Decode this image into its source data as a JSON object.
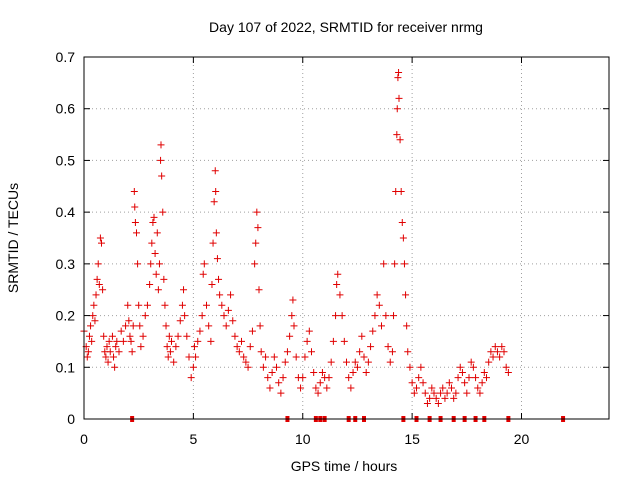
{
  "chart_data": {
    "type": "scatter",
    "title": "Day 107 of 2022, SRMTID for receiver nrmg",
    "xlabel": "GPS time / hours",
    "ylabel": "SRMTID / TECUs",
    "xlim": [
      0,
      24
    ],
    "ylim": [
      0,
      0.7
    ],
    "xticks": [
      0,
      5,
      10,
      15,
      20
    ],
    "yticks": [
      0,
      0.1,
      0.2,
      0.3,
      0.4,
      0.5,
      0.6,
      0.7
    ],
    "xtick_labels": [
      "0",
      "5",
      "10",
      "15",
      "20"
    ],
    "ytick_labels": [
      "0",
      "0.1",
      "0.2",
      "0.3",
      "0.4",
      "0.5",
      "0.6",
      "0.7"
    ],
    "grid": true,
    "marker": "+",
    "color": "#e00000",
    "series": [
      {
        "name": "SRMTID",
        "points": [
          [
            0.0,
            0.17
          ],
          [
            0.1,
            0.14
          ],
          [
            0.15,
            0.12
          ],
          [
            0.2,
            0.13
          ],
          [
            0.25,
            0.16
          ],
          [
            0.3,
            0.18
          ],
          [
            0.35,
            0.15
          ],
          [
            0.4,
            0.2
          ],
          [
            0.45,
            0.22
          ],
          [
            0.5,
            0.19
          ],
          [
            0.55,
            0.24
          ],
          [
            0.6,
            0.27
          ],
          [
            0.65,
            0.3
          ],
          [
            0.7,
            0.26
          ],
          [
            0.75,
            0.35
          ],
          [
            0.8,
            0.34
          ],
          [
            0.85,
            0.25
          ],
          [
            0.9,
            0.16
          ],
          [
            0.95,
            0.13
          ],
          [
            1.0,
            0.12
          ],
          [
            1.05,
            0.14
          ],
          [
            1.1,
            0.11
          ],
          [
            1.15,
            0.15
          ],
          [
            1.2,
            0.13
          ],
          [
            1.3,
            0.16
          ],
          [
            1.35,
            0.12
          ],
          [
            1.4,
            0.1
          ],
          [
            1.45,
            0.14
          ],
          [
            1.5,
            0.15
          ],
          [
            1.6,
            0.13
          ],
          [
            1.7,
            0.17
          ],
          [
            1.8,
            0.15
          ],
          [
            1.9,
            0.18
          ],
          [
            2.0,
            0.22
          ],
          [
            2.05,
            0.19
          ],
          [
            2.1,
            0.16
          ],
          [
            2.15,
            0.15
          ],
          [
            2.2,
            0.13
          ],
          [
            2.25,
            0.18
          ],
          [
            2.3,
            0.44
          ],
          [
            2.32,
            0.41
          ],
          [
            2.35,
            0.38
          ],
          [
            2.4,
            0.36
          ],
          [
            2.45,
            0.3
          ],
          [
            2.5,
            0.22
          ],
          [
            2.55,
            0.18
          ],
          [
            2.6,
            0.14
          ],
          [
            2.7,
            0.16
          ],
          [
            2.8,
            0.2
          ],
          [
            2.9,
            0.22
          ],
          [
            3.0,
            0.26
          ],
          [
            3.05,
            0.3
          ],
          [
            3.1,
            0.34
          ],
          [
            3.15,
            0.38
          ],
          [
            3.2,
            0.39
          ],
          [
            3.25,
            0.32
          ],
          [
            3.3,
            0.28
          ],
          [
            3.35,
            0.36
          ],
          [
            3.4,
            0.25
          ],
          [
            3.45,
            0.3
          ],
          [
            3.5,
            0.5
          ],
          [
            3.52,
            0.53
          ],
          [
            3.55,
            0.47
          ],
          [
            3.6,
            0.4
          ],
          [
            3.65,
            0.27
          ],
          [
            3.7,
            0.22
          ],
          [
            3.75,
            0.18
          ],
          [
            3.8,
            0.14
          ],
          [
            3.85,
            0.12
          ],
          [
            3.9,
            0.16
          ],
          [
            3.95,
            0.13
          ],
          [
            4.0,
            0.15
          ],
          [
            4.1,
            0.11
          ],
          [
            4.2,
            0.14
          ],
          [
            4.3,
            0.16
          ],
          [
            4.4,
            0.19
          ],
          [
            4.5,
            0.22
          ],
          [
            4.55,
            0.25
          ],
          [
            4.6,
            0.2
          ],
          [
            4.7,
            0.16
          ],
          [
            4.8,
            0.12
          ],
          [
            4.9,
            0.08
          ],
          [
            5.0,
            0.1
          ],
          [
            5.05,
            0.14
          ],
          [
            5.1,
            0.12
          ],
          [
            5.2,
            0.15
          ],
          [
            5.3,
            0.17
          ],
          [
            5.4,
            0.2
          ],
          [
            5.45,
            0.28
          ],
          [
            5.5,
            0.3
          ],
          [
            5.6,
            0.22
          ],
          [
            5.7,
            0.18
          ],
          [
            5.8,
            0.15
          ],
          [
            5.85,
            0.26
          ],
          [
            5.9,
            0.34
          ],
          [
            5.95,
            0.42
          ],
          [
            6.0,
            0.48
          ],
          [
            6.02,
            0.44
          ],
          [
            6.05,
            0.36
          ],
          [
            6.1,
            0.31
          ],
          [
            6.15,
            0.27
          ],
          [
            6.2,
            0.24
          ],
          [
            6.3,
            0.22
          ],
          [
            6.4,
            0.2
          ],
          [
            6.5,
            0.18
          ],
          [
            6.6,
            0.21
          ],
          [
            6.7,
            0.24
          ],
          [
            6.8,
            0.19
          ],
          [
            6.9,
            0.16
          ],
          [
            7.0,
            0.14
          ],
          [
            7.1,
            0.13
          ],
          [
            7.2,
            0.15
          ],
          [
            7.3,
            0.12
          ],
          [
            7.4,
            0.11
          ],
          [
            7.5,
            0.1
          ],
          [
            7.6,
            0.14
          ],
          [
            7.7,
            0.17
          ],
          [
            7.8,
            0.3
          ],
          [
            7.85,
            0.34
          ],
          [
            7.9,
            0.4
          ],
          [
            7.95,
            0.37
          ],
          [
            8.0,
            0.25
          ],
          [
            8.05,
            0.18
          ],
          [
            8.1,
            0.13
          ],
          [
            8.2,
            0.1
          ],
          [
            8.3,
            0.12
          ],
          [
            8.4,
            0.08
          ],
          [
            8.5,
            0.06
          ],
          [
            8.6,
            0.09
          ],
          [
            8.7,
            0.12
          ],
          [
            8.8,
            0.1
          ],
          [
            8.9,
            0.07
          ],
          [
            9.0,
            0.05
          ],
          [
            9.1,
            0.08
          ],
          [
            9.2,
            0.11
          ],
          [
            9.3,
            0.13
          ],
          [
            9.4,
            0.16
          ],
          [
            9.5,
            0.2
          ],
          [
            9.55,
            0.23
          ],
          [
            9.6,
            0.18
          ],
          [
            9.7,
            0.12
          ],
          [
            9.8,
            0.08
          ],
          [
            9.9,
            0.06
          ],
          [
            10.0,
            0.08
          ],
          [
            10.1,
            0.12
          ],
          [
            10.2,
            0.15
          ],
          [
            10.3,
            0.17
          ],
          [
            10.4,
            0.13
          ],
          [
            10.5,
            0.09
          ],
          [
            10.6,
            0.06
          ],
          [
            10.7,
            0.05
          ],
          [
            10.8,
            0.07
          ],
          [
            10.9,
            0.09
          ],
          [
            11.0,
            0.08
          ],
          [
            11.1,
            0.06
          ],
          [
            11.2,
            0.08
          ],
          [
            11.3,
            0.11
          ],
          [
            11.4,
            0.15
          ],
          [
            11.5,
            0.2
          ],
          [
            11.55,
            0.26
          ],
          [
            11.6,
            0.28
          ],
          [
            11.7,
            0.24
          ],
          [
            11.8,
            0.2
          ],
          [
            11.9,
            0.15
          ],
          [
            12.0,
            0.11
          ],
          [
            12.1,
            0.08
          ],
          [
            12.2,
            0.06
          ],
          [
            12.3,
            0.09
          ],
          [
            12.4,
            0.11
          ],
          [
            12.5,
            0.1
          ],
          [
            12.6,
            0.13
          ],
          [
            12.7,
            0.16
          ],
          [
            12.8,
            0.12
          ],
          [
            12.9,
            0.09
          ],
          [
            13.0,
            0.11
          ],
          [
            13.1,
            0.14
          ],
          [
            13.2,
            0.17
          ],
          [
            13.3,
            0.2
          ],
          [
            13.4,
            0.24
          ],
          [
            13.5,
            0.22
          ],
          [
            13.6,
            0.18
          ],
          [
            13.7,
            0.3
          ],
          [
            13.8,
            0.2
          ],
          [
            13.9,
            0.14
          ],
          [
            14.0,
            0.11
          ],
          [
            14.1,
            0.13
          ],
          [
            14.15,
            0.2
          ],
          [
            14.2,
            0.3
          ],
          [
            14.25,
            0.44
          ],
          [
            14.3,
            0.55
          ],
          [
            14.32,
            0.6
          ],
          [
            14.35,
            0.66
          ],
          [
            14.38,
            0.67
          ],
          [
            14.4,
            0.62
          ],
          [
            14.45,
            0.54
          ],
          [
            14.5,
            0.44
          ],
          [
            14.55,
            0.38
          ],
          [
            14.6,
            0.35
          ],
          [
            14.65,
            0.3
          ],
          [
            14.7,
            0.24
          ],
          [
            14.75,
            0.18
          ],
          [
            14.8,
            0.13
          ],
          [
            14.9,
            0.1
          ],
          [
            15.0,
            0.07
          ],
          [
            15.1,
            0.05
          ],
          [
            15.2,
            0.06
          ],
          [
            15.3,
            0.08
          ],
          [
            15.4,
            0.1
          ],
          [
            15.5,
            0.07
          ],
          [
            15.6,
            0.05
          ],
          [
            15.7,
            0.03
          ],
          [
            15.8,
            0.04
          ],
          [
            15.9,
            0.06
          ],
          [
            16.0,
            0.05
          ],
          [
            16.1,
            0.04
          ],
          [
            16.2,
            0.03
          ],
          [
            16.3,
            0.05
          ],
          [
            16.4,
            0.06
          ],
          [
            16.5,
            0.04
          ],
          [
            16.6,
            0.05
          ],
          [
            16.7,
            0.07
          ],
          [
            16.8,
            0.06
          ],
          [
            16.9,
            0.04
          ],
          [
            17.0,
            0.05
          ],
          [
            17.1,
            0.08
          ],
          [
            17.2,
            0.1
          ],
          [
            17.3,
            0.09
          ],
          [
            17.4,
            0.07
          ],
          [
            17.5,
            0.05
          ],
          [
            17.6,
            0.08
          ],
          [
            17.7,
            0.11
          ],
          [
            17.8,
            0.1
          ],
          [
            17.9,
            0.08
          ],
          [
            18.0,
            0.06
          ],
          [
            18.1,
            0.05
          ],
          [
            18.2,
            0.07
          ],
          [
            18.3,
            0.09
          ],
          [
            18.4,
            0.08
          ],
          [
            18.5,
            0.11
          ],
          [
            18.6,
            0.13
          ],
          [
            18.7,
            0.12
          ],
          [
            18.8,
            0.14
          ],
          [
            18.9,
            0.13
          ],
          [
            19.0,
            0.12
          ],
          [
            19.1,
            0.14
          ],
          [
            19.2,
            0.13
          ],
          [
            19.3,
            0.1
          ],
          [
            19.4,
            0.09
          ]
        ],
        "zero_points": [
          2.2,
          9.3,
          10.6,
          10.8,
          11.0,
          12.1,
          12.4,
          12.8,
          14.6,
          15.2,
          15.8,
          16.3,
          16.9,
          17.4,
          17.9,
          18.3,
          19.4,
          21.9
        ]
      }
    ]
  }
}
